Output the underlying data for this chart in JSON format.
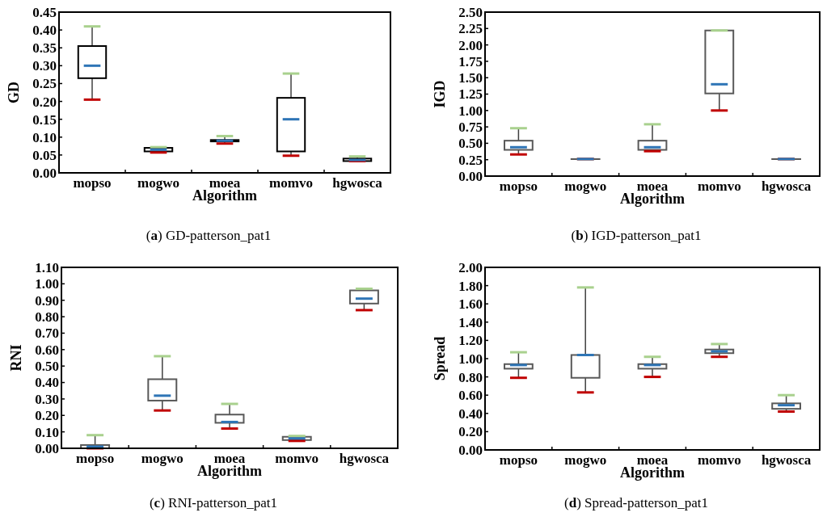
{
  "chart_data": [
    {
      "type": "box",
      "title": "(a) GD-patterson_pat1",
      "xlabel": "Algorithm",
      "ylabel": "GD",
      "categories": [
        "mopso",
        "mogwo",
        "moea",
        "momvo",
        "hgwosca"
      ],
      "ylim": [
        0,
        0.45
      ],
      "yticks": [
        {
          "value": 0,
          "label": "0.00"
        },
        {
          "value": 0.05,
          "label": "0.05"
        },
        {
          "value": 0.1,
          "label": "0.10"
        },
        {
          "value": 0.15,
          "label": "0.15"
        },
        {
          "value": 0.2,
          "label": "0.20"
        },
        {
          "value": 0.25,
          "label": "0.25"
        },
        {
          "value": 0.3,
          "label": "0.30"
        },
        {
          "value": 0.35,
          "label": "0.35"
        },
        {
          "value": 0.4,
          "label": "0.40"
        },
        {
          "value": 0.45,
          "label": "0.45"
        }
      ],
      "series": [
        {
          "color": "#000000",
          "boxes": [
            {
              "low": 0.205,
              "q1": 0.265,
              "median": 0.3,
              "q3": 0.355,
              "high": 0.41
            },
            {
              "low": 0.057,
              "q1": 0.06,
              "median": 0.065,
              "q3": 0.07,
              "high": 0.072
            },
            {
              "low": 0.082,
              "q1": 0.088,
              "median": 0.09,
              "q3": 0.092,
              "high": 0.103
            },
            {
              "low": 0.048,
              "q1": 0.06,
              "median": 0.15,
              "q3": 0.21,
              "high": 0.278
            },
            {
              "low": 0.033,
              "q1": 0.033,
              "median": 0.036,
              "q3": 0.04,
              "high": 0.046
            }
          ]
        }
      ]
    },
    {
      "type": "box",
      "title": "(b) IGD-patterson_pat1",
      "xlabel": "Algorithm",
      "ylabel": "IGD",
      "categories": [
        "mopso",
        "mogwo",
        "moea",
        "momvo",
        "hgwosca"
      ],
      "ylim": [
        0,
        2.5
      ],
      "yticks": [
        {
          "value": 0,
          "label": "0.00"
        },
        {
          "value": 0.25,
          "label": "0.25"
        },
        {
          "value": 0.5,
          "label": "0.50"
        },
        {
          "value": 0.75,
          "label": "0.75"
        },
        {
          "value": 1,
          "label": "1.00"
        },
        {
          "value": 1.25,
          "label": "1.25"
        },
        {
          "value": 1.5,
          "label": "1.50"
        },
        {
          "value": 1.75,
          "label": "1.75"
        },
        {
          "value": 2,
          "label": "2.00"
        },
        {
          "value": 2.25,
          "label": "2.25"
        },
        {
          "value": 2.5,
          "label": "2.50"
        }
      ],
      "series": [
        {
          "color": "#595959",
          "boxes": [
            {
              "low": 0.33,
              "q1": 0.4,
              "median": 0.44,
              "q3": 0.54,
              "high": 0.73
            },
            {
              "low": 0.26,
              "q1": 0.26,
              "median": 0.26,
              "q3": 0.26,
              "high": 0.26
            },
            {
              "low": 0.38,
              "q1": 0.4,
              "median": 0.44,
              "q3": 0.54,
              "high": 0.79
            },
            {
              "low": 1.0,
              "q1": 1.26,
              "median": 1.4,
              "q3": 2.22,
              "high": 2.22
            },
            {
              "low": 0.26,
              "q1": 0.26,
              "median": 0.26,
              "q3": 0.26,
              "high": 0.26
            }
          ]
        }
      ]
    },
    {
      "type": "box",
      "title": "(c) RNI-patterson_pat1",
      "xlabel": "Algorithm",
      "ylabel": "RNI",
      "categories": [
        "mopso",
        "mogwo",
        "moea",
        "momvo",
        "hgwosca"
      ],
      "ylim": [
        0,
        1.1
      ],
      "yticks": [
        {
          "value": 0,
          "label": "0.00"
        },
        {
          "value": 0.1,
          "label": "0.10"
        },
        {
          "value": 0.2,
          "label": "0.20"
        },
        {
          "value": 0.3,
          "label": "0.30"
        },
        {
          "value": 0.4,
          "label": "0.40"
        },
        {
          "value": 0.5,
          "label": "0.50"
        },
        {
          "value": 0.6,
          "label": "0.60"
        },
        {
          "value": 0.7,
          "label": "0.70"
        },
        {
          "value": 0.8,
          "label": "0.80"
        },
        {
          "value": 0.9,
          "label": "0.90"
        },
        {
          "value": 1,
          "label": "1.00"
        },
        {
          "value": 1.1,
          "label": "1.10"
        }
      ],
      "series": [
        {
          "color": "#595959",
          "boxes": [
            {
              "low": 0,
              "q1": 0,
              "median": 0.01,
              "q3": 0.02,
              "high": 0.08
            },
            {
              "low": 0.23,
              "q1": 0.29,
              "median": 0.32,
              "q3": 0.42,
              "high": 0.56
            },
            {
              "low": 0.12,
              "q1": 0.155,
              "median": 0.16,
              "q3": 0.205,
              "high": 0.27
            },
            {
              "low": 0.045,
              "q1": 0.05,
              "median": 0.06,
              "q3": 0.07,
              "high": 0.075
            },
            {
              "low": 0.84,
              "q1": 0.88,
              "median": 0.91,
              "q3": 0.96,
              "high": 0.97
            }
          ]
        }
      ]
    },
    {
      "type": "box",
      "title": "(d) Spread-patterson_pat1",
      "xlabel": "Algorithm",
      "ylabel": "Spread",
      "categories": [
        "mopso",
        "mogwo",
        "moea",
        "momvo",
        "hgwosca"
      ],
      "ylim": [
        0,
        2
      ],
      "yticks": [
        {
          "value": 0,
          "label": "0.00"
        },
        {
          "value": 0.2,
          "label": "0.20"
        },
        {
          "value": 0.4,
          "label": "0.40"
        },
        {
          "value": 0.6,
          "label": "0.60"
        },
        {
          "value": 0.8,
          "label": "0.80"
        },
        {
          "value": 1,
          "label": "1.00"
        },
        {
          "value": 1.2,
          "label": "1.20"
        },
        {
          "value": 1.4,
          "label": "1.40"
        },
        {
          "value": 1.6,
          "label": "1.60"
        },
        {
          "value": 1.8,
          "label": "1.80"
        },
        {
          "value": 2,
          "label": "2.00"
        }
      ],
      "series": [
        {
          "color": "#595959",
          "boxes": [
            {
              "low": 0.79,
              "q1": 0.89,
              "median": 0.93,
              "q3": 0.94,
              "high": 1.07
            },
            {
              "low": 0.63,
              "q1": 0.79,
              "median": 1.04,
              "q3": 1.04,
              "high": 1.78
            },
            {
              "low": 0.8,
              "q1": 0.89,
              "median": 0.93,
              "q3": 0.94,
              "high": 1.02
            },
            {
              "low": 1.02,
              "q1": 1.06,
              "median": 1.08,
              "q3": 1.1,
              "high": 1.16
            },
            {
              "low": 0.42,
              "q1": 0.45,
              "median": 0.49,
              "q3": 0.51,
              "high": 0.6
            }
          ]
        }
      ]
    }
  ]
}
